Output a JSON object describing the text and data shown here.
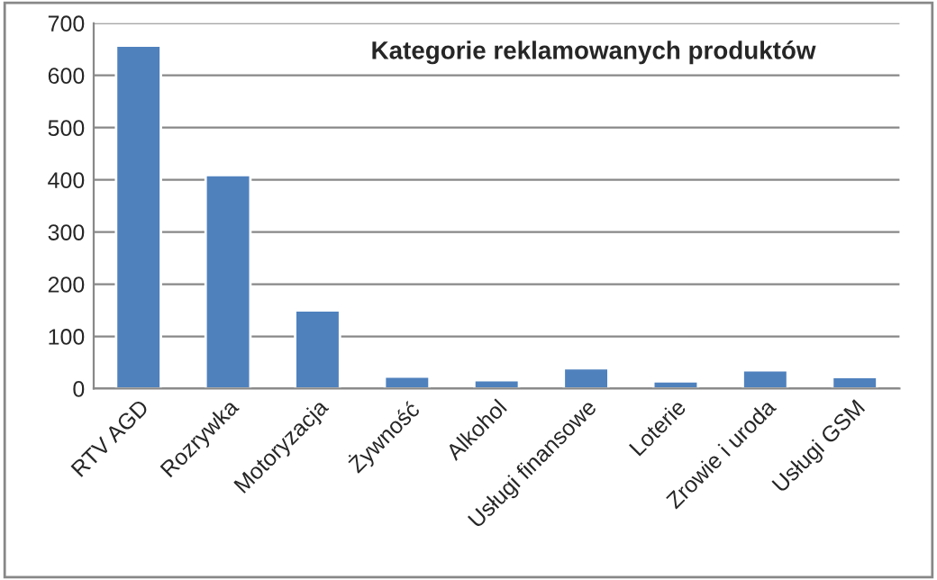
{
  "chart_data": {
    "type": "bar",
    "title": "Kategorie reklamowanych produktów",
    "categories": [
      "RTV AGD",
      "Rozrywka",
      "Motoryzacja",
      "Żywność",
      "Alkohol",
      "Usługi finansowe",
      "Loterie",
      "Zrowie i uroda",
      "Usługi GSM"
    ],
    "values": [
      657,
      409,
      150,
      23,
      16,
      39,
      14,
      35,
      22
    ],
    "color": "#4f81bd",
    "ylim": [
      0,
      700
    ],
    "yticks": [
      0,
      100,
      200,
      300,
      400,
      500,
      600,
      700
    ],
    "grid": "y",
    "legend": false
  }
}
